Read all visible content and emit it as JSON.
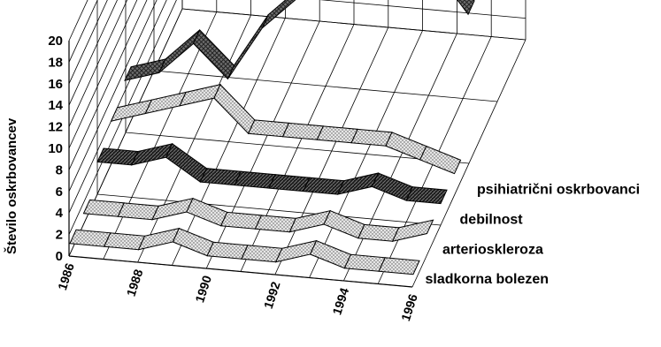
{
  "chart_data": {
    "type": "area",
    "variant": "3d-ribbon",
    "title": "",
    "xlabel": "",
    "ylabel": "Število oskrbovancev",
    "ylim": [
      0,
      20
    ],
    "yticks": [
      "0",
      "2",
      "4",
      "6",
      "8",
      "10",
      "12",
      "14",
      "16",
      "18",
      "20"
    ],
    "xticks": [
      "1986",
      "1988",
      "1990",
      "1992",
      "1994",
      "1996"
    ],
    "x": [
      1986,
      1987,
      1988,
      1989,
      1990,
      1991,
      1992,
      1993,
      1994,
      1995,
      1996
    ],
    "grid": true,
    "series": [
      {
        "name": "sladkorna bolezen",
        "values": [
          1,
          1,
          1,
          2,
          1,
          1,
          1,
          2,
          1,
          1,
          1
        ],
        "color": "#d6d6d6",
        "pattern": "dots"
      },
      {
        "name": "arterioskleroza",
        "values": [
          1,
          1,
          1,
          2,
          1,
          1,
          1,
          2,
          1,
          1,
          2
        ],
        "color": "#cfcfcf",
        "pattern": "dots"
      },
      {
        "name": "debilnost",
        "values": [
          3,
          3,
          4,
          2,
          2,
          2,
          2,
          2,
          3,
          2,
          2
        ],
        "color": "#2a2a2a",
        "pattern": "hatch"
      },
      {
        "name": "psihiatrični oskrbovanci",
        "values": [
          4,
          5,
          6,
          7,
          4,
          4,
          4,
          4,
          4,
          3,
          2
        ],
        "color": "#e0e0e0",
        "pattern": "dots"
      },
      {
        "name": "",
        "values": [
          5,
          6,
          9,
          6,
          11,
          14,
          20,
          16,
          16,
          18,
          14
        ],
        "color": "#8a8a8a",
        "pattern": "crosshatch"
      }
    ]
  }
}
